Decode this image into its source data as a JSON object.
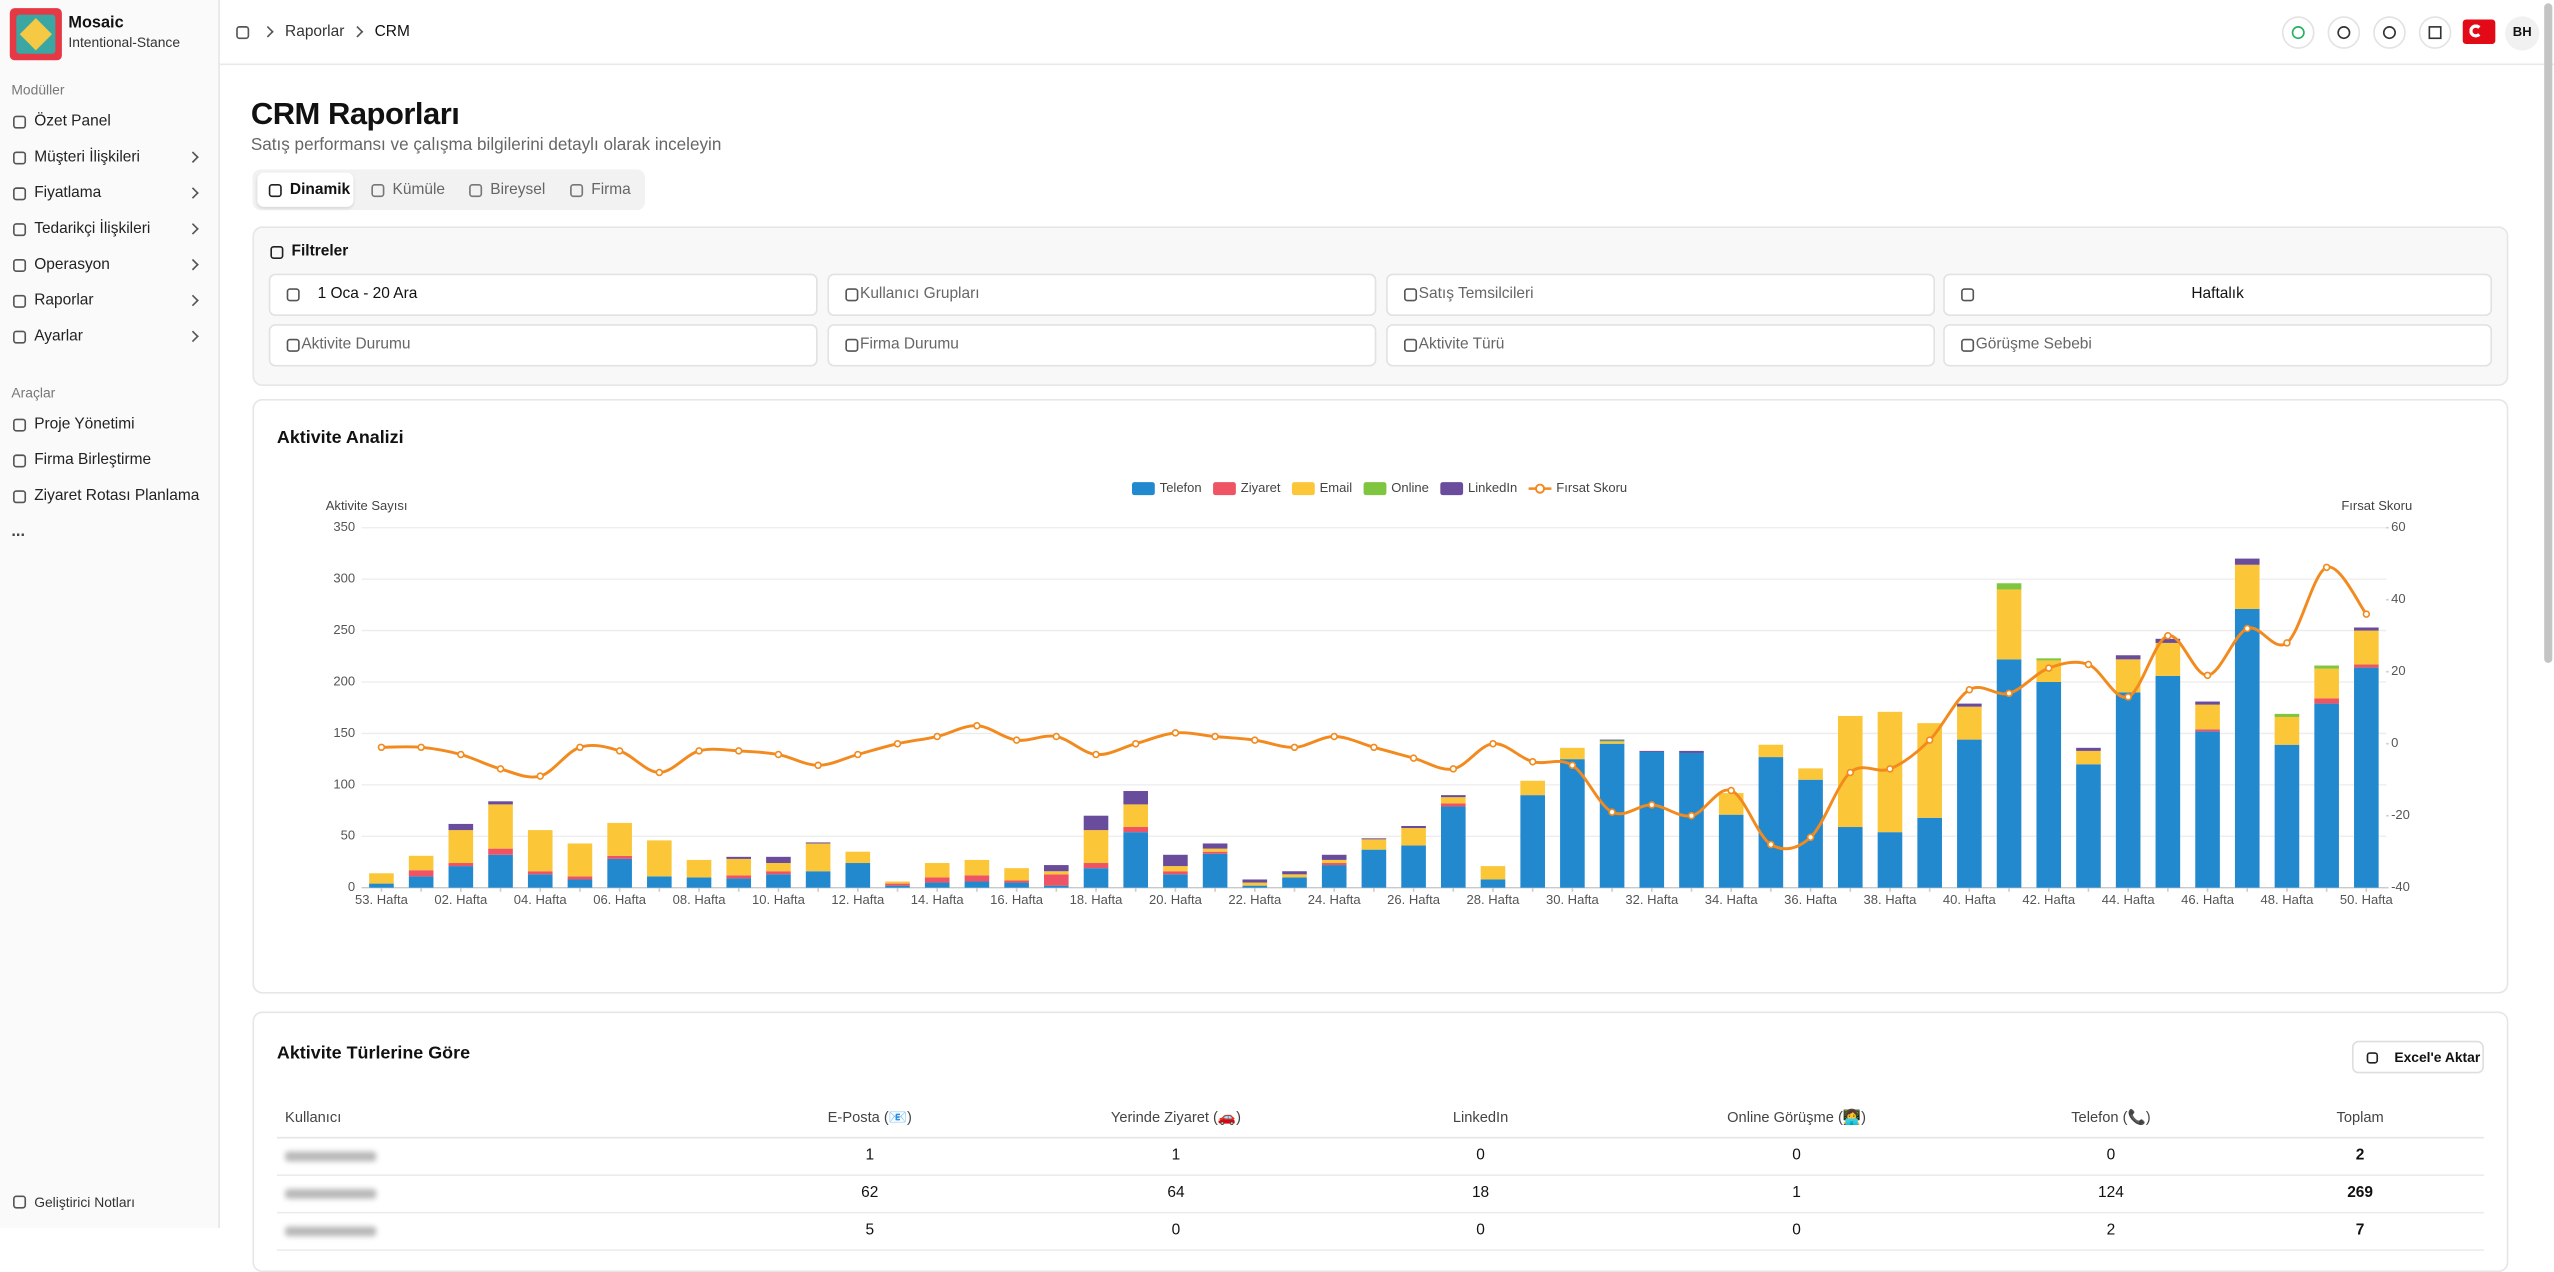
{
  "sidebar": {
    "brand": "Mosaic",
    "workspace": "Intentional-Stance",
    "sections": [
      {
        "title": "Modüller",
        "items": [
          "Özet Panel",
          "Müşteri İlişkileri",
          "Fiyatlama",
          "Tedarikçi İlişkileri",
          "Operasyon",
          "Raporlar",
          "Ayarlar"
        ]
      },
      {
        "title": "Araçlar",
        "items": [
          "Proje Yönetimi",
          "Firma Birleştirme",
          "Ziyaret Rotası Planlama",
          "..."
        ]
      }
    ],
    "footer": "Geliştirici Notları"
  },
  "topbar": {
    "breadcrumb": [
      "Raporlar",
      "CRM"
    ],
    "avatar": "BH"
  },
  "header": {
    "title": "CRM Raporları",
    "subtitle": "Satış performansı ve çalışma bilgilerini detaylı olarak inceleyin"
  },
  "tabs": [
    "Dinamik",
    "Kümüle",
    "Bireysel",
    "Firma"
  ],
  "filters": {
    "title": "Filtreler",
    "fields": [
      "1 Oca - 20 Ara",
      "Kullanıcı Grupları",
      "Satış Temsilcileri",
      "Haftalık",
      "Aktivite Durumu",
      "Firma Durumu",
      "Aktivite Türü",
      "Görüşme Sebebi"
    ]
  },
  "chart_data": {
    "type": "bar",
    "stacked": true,
    "title": "Aktivite Analizi",
    "ylabel": "Aktivite Sayısı",
    "y2label": "Fırsat Skoru",
    "legend": "top",
    "grid": true,
    "categories": [
      "53. Hafta",
      null,
      "02. Hafta",
      null,
      "04. Hafta",
      null,
      "06. Hafta",
      null,
      "08. Hafta",
      null,
      "10. Hafta",
      null,
      "12. Hafta",
      null,
      "14. Hafta",
      null,
      "16. Hafta",
      null,
      "18. Hafta",
      null,
      "20. Hafta",
      null,
      "22. Hafta",
      null,
      "24. Hafta",
      null,
      "26. Hafta",
      null,
      "28. Hafta",
      null,
      "30. Hafta",
      null,
      "32. Hafta",
      null,
      "34. Hafta",
      null,
      "36. Hafta",
      null,
      "38. Hafta",
      null,
      "40. Hafta",
      null,
      "42. Hafta",
      null,
      "44. Hafta",
      null,
      "46. Hafta",
      null,
      "48. Hafta",
      null,
      "50. Hafta"
    ],
    "ylim": [
      0,
      350
    ],
    "yticks": [
      0,
      50,
      100,
      150,
      200,
      250,
      300,
      350
    ],
    "y2lim": [
      -40,
      60
    ],
    "y2ticks": [
      -40,
      -20,
      0,
      20,
      40,
      60
    ],
    "series": [
      {
        "name": "Telefon",
        "color": "#2389cf",
        "values": [
          4,
          11,
          21,
          32,
          13,
          8,
          28,
          11,
          10,
          9,
          13,
          16,
          24,
          2,
          5,
          6,
          5,
          2,
          19,
          54,
          13,
          33,
          2,
          10,
          22,
          37,
          41,
          79,
          8,
          90,
          125,
          140,
          132,
          131,
          71,
          127,
          105,
          59,
          54,
          68,
          144,
          222,
          200,
          120,
          190,
          206,
          152,
          271,
          139,
          179,
          214
        ]
      },
      {
        "name": "Ziyaret",
        "color": "#ef5464",
        "values": [
          0,
          6,
          3,
          6,
          3,
          3,
          3,
          0,
          0,
          3,
          3,
          0,
          0,
          2,
          5,
          6,
          2,
          11,
          5,
          5,
          3,
          2,
          0,
          0,
          2,
          0,
          0,
          3,
          0,
          0,
          0,
          0,
          0,
          0,
          0,
          0,
          0,
          0,
          0,
          0,
          0,
          0,
          0,
          0,
          0,
          0,
          2,
          0,
          0,
          5,
          3
        ]
      },
      {
        "name": "Email",
        "color": "#fbc738",
        "values": [
          10,
          14,
          32,
          43,
          40,
          32,
          32,
          35,
          17,
          16,
          8,
          27,
          11,
          2,
          14,
          15,
          12,
          3,
          32,
          22,
          5,
          3,
          3,
          3,
          3,
          10,
          17,
          6,
          13,
          14,
          11,
          2,
          0,
          0,
          21,
          12,
          11,
          108,
          117,
          92,
          32,
          68,
          21,
          13,
          32,
          32,
          24,
          43,
          27,
          29,
          33
        ]
      },
      {
        "name": "Online",
        "color": "#7fc540",
        "values": [
          0,
          0,
          0,
          0,
          0,
          0,
          0,
          0,
          0,
          0,
          0,
          0,
          0,
          0,
          0,
          0,
          0,
          0,
          0,
          0,
          0,
          0,
          0,
          0,
          0,
          0,
          0,
          0,
          0,
          0,
          0,
          1,
          0,
          0,
          0,
          0,
          0,
          0,
          0,
          0,
          0,
          6,
          2,
          0,
          0,
          0,
          0,
          0,
          3,
          3,
          0
        ]
      },
      {
        "name": "LinkedIn",
        "color": "#6a4c9c",
        "values": [
          0,
          0,
          6,
          3,
          0,
          0,
          0,
          0,
          0,
          2,
          6,
          1,
          0,
          0,
          0,
          0,
          0,
          6,
          14,
          13,
          11,
          5,
          3,
          3,
          5,
          1,
          2,
          2,
          0,
          0,
          0,
          1,
          1,
          2,
          0,
          0,
          0,
          0,
          0,
          0,
          3,
          0,
          0,
          3,
          4,
          4,
          3,
          6,
          0,
          0,
          3
        ]
      },
      {
        "name": "Fırsat Skoru",
        "color": "#f28a1e",
        "type": "line",
        "axis": "y2",
        "values": [
          -1,
          -1,
          -3,
          -7,
          -9,
          -1,
          -2,
          -8,
          -2,
          -2,
          -3,
          -6,
          -3,
          0,
          2,
          5,
          1,
          2,
          -3,
          0,
          3,
          2,
          1,
          -1,
          2,
          -1,
          -4,
          -7,
          0,
          -5,
          -6,
          -19,
          -17,
          -20,
          -13,
          -28,
          -26,
          -8,
          -7,
          1,
          15,
          14,
          21,
          22,
          13,
          30,
          19,
          32,
          28,
          49,
          36
        ]
      }
    ]
  },
  "table": {
    "title": "Aktivite Türlerine Göre",
    "export": "Excel'e Aktar",
    "columns": [
      "Kullanıcı",
      "E-Posta (📧)",
      "Yerinde Ziyaret (🚗)",
      "LinkedIn",
      "Online Görüşme (👩‍💻)",
      "Telefon (📞)",
      "Toplam"
    ],
    "rows": [
      [
        1,
        1,
        0,
        0,
        0,
        2
      ],
      [
        62,
        64,
        18,
        1,
        124,
        269
      ],
      [
        5,
        0,
        0,
        0,
        2,
        7
      ]
    ]
  }
}
